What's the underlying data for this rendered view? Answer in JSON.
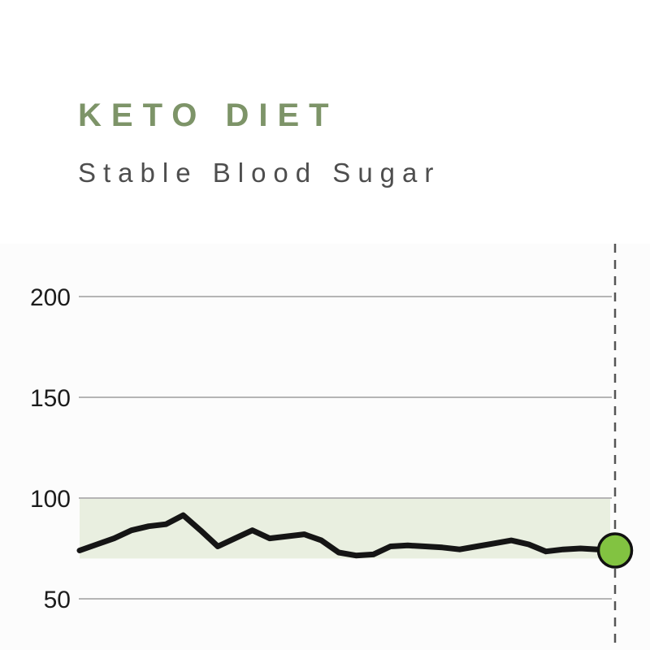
{
  "header": {
    "title": "KETO DIET",
    "subtitle": "Stable Blood Sugar"
  },
  "chart_data": {
    "type": "line",
    "title": "KETO DIET",
    "subtitle": "Stable Blood Sugar",
    "xlabel": "",
    "ylabel": "",
    "x_tick_labels": [],
    "yticks": [
      200,
      150,
      100,
      50
    ],
    "ylim": [
      25,
      226
    ],
    "grid": "horizontal-only",
    "legend": "none",
    "target_band": {
      "low": 70,
      "high": 100
    },
    "series": [
      {
        "name": "Blood Sugar",
        "values": [
          74,
          77,
          80,
          84,
          86,
          87,
          91.5,
          84,
          76,
          80,
          84,
          80,
          81,
          82,
          79,
          73,
          71.5,
          72,
          76,
          76.5,
          76,
          75.5,
          74.5,
          76,
          77.5,
          79,
          77,
          73.5,
          74.5,
          75,
          74.5,
          74
        ]
      }
    ],
    "endpoint_marker": {
      "series": "Blood Sugar",
      "value": 74
    },
    "time_cursor": {
      "style": "dashed",
      "position": "right-edge"
    }
  },
  "colors": {
    "title": "#7d9468",
    "subtitle": "#4e4e4e",
    "tick_label": "#1c1c1c",
    "gridline": "#b5b5b5",
    "target_band_fill": "#e9efe0",
    "line": "#151515",
    "marker_fill": "#82c341",
    "marker_stroke": "#111111",
    "dashed_cursor": "#555555",
    "chart_background": "#fcfcfc",
    "page_background": "#ffffff"
  }
}
